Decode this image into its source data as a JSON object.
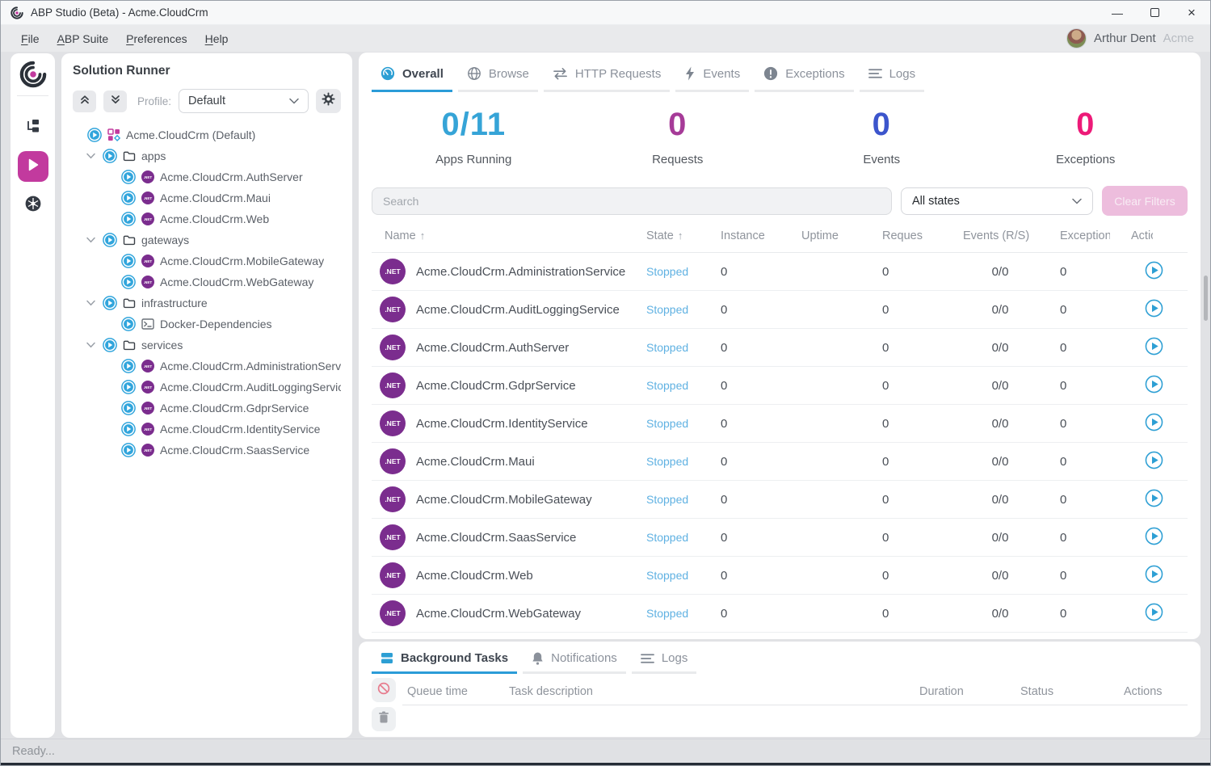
{
  "window": {
    "title": "ABP Studio (Beta) - Acme.CloudCrm"
  },
  "icons": {
    "minimize": "—",
    "close": "×",
    "sort_asc": "↑"
  },
  "menubar": {
    "items": [
      {
        "label": "File"
      },
      {
        "label": "ABP Suite"
      },
      {
        "label": "Preferences"
      },
      {
        "label": "Help"
      }
    ],
    "user": {
      "name": "Arthur Dent",
      "org": "Acme"
    }
  },
  "solution_runner": {
    "title": "Solution Runner",
    "profile_label": "Profile:",
    "profile_value": "Default",
    "tree": [
      {
        "level": 0,
        "icon": "solution-icon",
        "label": "Acme.CloudCrm (Default)",
        "chevron": false
      },
      {
        "level": 1,
        "icon": "folder-icon",
        "label": "apps",
        "chevron": true
      },
      {
        "level": 2,
        "icon": "dotnet-icon",
        "label": "Acme.CloudCrm.AuthServer",
        "chevron": false
      },
      {
        "level": 2,
        "icon": "dotnet-icon",
        "label": "Acme.CloudCrm.Maui",
        "chevron": false
      },
      {
        "level": 2,
        "icon": "dotnet-icon",
        "label": "Acme.CloudCrm.Web",
        "chevron": false
      },
      {
        "level": 1,
        "icon": "folder-icon",
        "label": "gateways",
        "chevron": true
      },
      {
        "level": 2,
        "icon": "dotnet-icon",
        "label": "Acme.CloudCrm.MobileGateway",
        "chevron": false
      },
      {
        "level": 2,
        "icon": "dotnet-icon",
        "label": "Acme.CloudCrm.WebGateway",
        "chevron": false
      },
      {
        "level": 1,
        "icon": "folder-icon",
        "label": "infrastructure",
        "chevron": true
      },
      {
        "level": 2,
        "icon": "terminal-icon",
        "label": "Docker-Dependencies",
        "chevron": false
      },
      {
        "level": 1,
        "icon": "folder-icon",
        "label": "services",
        "chevron": true
      },
      {
        "level": 2,
        "icon": "dotnet-icon",
        "label": "Acme.CloudCrm.AdministrationService",
        "chevron": false
      },
      {
        "level": 2,
        "icon": "dotnet-icon",
        "label": "Acme.CloudCrm.AuditLoggingService",
        "chevron": false
      },
      {
        "level": 2,
        "icon": "dotnet-icon",
        "label": "Acme.CloudCrm.GdprService",
        "chevron": false
      },
      {
        "level": 2,
        "icon": "dotnet-icon",
        "label": "Acme.CloudCrm.IdentityService",
        "chevron": false
      },
      {
        "level": 2,
        "icon": "dotnet-icon",
        "label": "Acme.CloudCrm.SaasService",
        "chevron": false
      }
    ]
  },
  "main": {
    "tabs": [
      {
        "label": "Overall",
        "icon": "gauge-icon",
        "active": true
      },
      {
        "label": "Browse",
        "icon": "globe-icon",
        "active": false
      },
      {
        "label": "HTTP Requests",
        "icon": "swap-arrows-icon",
        "active": false
      },
      {
        "label": "Events",
        "icon": "lightning-icon",
        "active": false
      },
      {
        "label": "Exceptions",
        "icon": "exclamation-icon",
        "active": false
      },
      {
        "label": "Logs",
        "icon": "lines-icon",
        "active": false
      }
    ],
    "stats": [
      {
        "value": "0/11",
        "label": "Apps Running",
        "color": "#36a4d7"
      },
      {
        "value": "0",
        "label": "Requests",
        "color": "#a63b98"
      },
      {
        "value": "0",
        "label": "Events",
        "color": "#3c55cc"
      },
      {
        "value": "0",
        "label": "Exceptions",
        "color": "#ed1a78"
      }
    ],
    "search_placeholder": "Search",
    "state_filter_value": "All states",
    "clear_filters_label": "Clear Filters",
    "table": {
      "columns": [
        "Name",
        "State",
        "Instance",
        "Uptime",
        "Requests",
        "Events (R/S)",
        "Exceptions",
        "Actions"
      ],
      "rows": [
        {
          "name": "Acme.CloudCrm.AdministrationService",
          "state": "Stopped",
          "instance": "0",
          "uptime": "",
          "requests": "0",
          "events": "0/0",
          "exceptions": "0"
        },
        {
          "name": "Acme.CloudCrm.AuditLoggingService",
          "state": "Stopped",
          "instance": "0",
          "uptime": "",
          "requests": "0",
          "events": "0/0",
          "exceptions": "0"
        },
        {
          "name": "Acme.CloudCrm.AuthServer",
          "state": "Stopped",
          "instance": "0",
          "uptime": "",
          "requests": "0",
          "events": "0/0",
          "exceptions": "0"
        },
        {
          "name": "Acme.CloudCrm.GdprService",
          "state": "Stopped",
          "instance": "0",
          "uptime": "",
          "requests": "0",
          "events": "0/0",
          "exceptions": "0"
        },
        {
          "name": "Acme.CloudCrm.IdentityService",
          "state": "Stopped",
          "instance": "0",
          "uptime": "",
          "requests": "0",
          "events": "0/0",
          "exceptions": "0"
        },
        {
          "name": "Acme.CloudCrm.Maui",
          "state": "Stopped",
          "instance": "0",
          "uptime": "",
          "requests": "0",
          "events": "0/0",
          "exceptions": "0"
        },
        {
          "name": "Acme.CloudCrm.MobileGateway",
          "state": "Stopped",
          "instance": "0",
          "uptime": "",
          "requests": "0",
          "events": "0/0",
          "exceptions": "0"
        },
        {
          "name": "Acme.CloudCrm.SaasService",
          "state": "Stopped",
          "instance": "0",
          "uptime": "",
          "requests": "0",
          "events": "0/0",
          "exceptions": "0"
        },
        {
          "name": "Acme.CloudCrm.Web",
          "state": "Stopped",
          "instance": "0",
          "uptime": "",
          "requests": "0",
          "events": "0/0",
          "exceptions": "0"
        },
        {
          "name": "Acme.CloudCrm.WebGateway",
          "state": "Stopped",
          "instance": "0",
          "uptime": "",
          "requests": "0",
          "events": "0/0",
          "exceptions": "0"
        }
      ]
    }
  },
  "bottom": {
    "tabs": [
      {
        "label": "Background Tasks",
        "icon": "stack-icon",
        "active": true
      },
      {
        "label": "Notifications",
        "icon": "bell-icon",
        "active": false
      },
      {
        "label": "Logs",
        "icon": "lines-icon",
        "active": false
      }
    ],
    "columns": [
      "Queue time",
      "Task description",
      "Duration",
      "Status",
      "Actions"
    ]
  },
  "statusbar": {
    "text": "Ready..."
  },
  "colors": {
    "accent_blue": "#2d9fd4",
    "brand_magenta": "#c23a9e",
    "dotnet_purple": "#7b2d8e",
    "stopped_blue": "#5fb1e2",
    "clear_button_bg": "#edbddd"
  }
}
